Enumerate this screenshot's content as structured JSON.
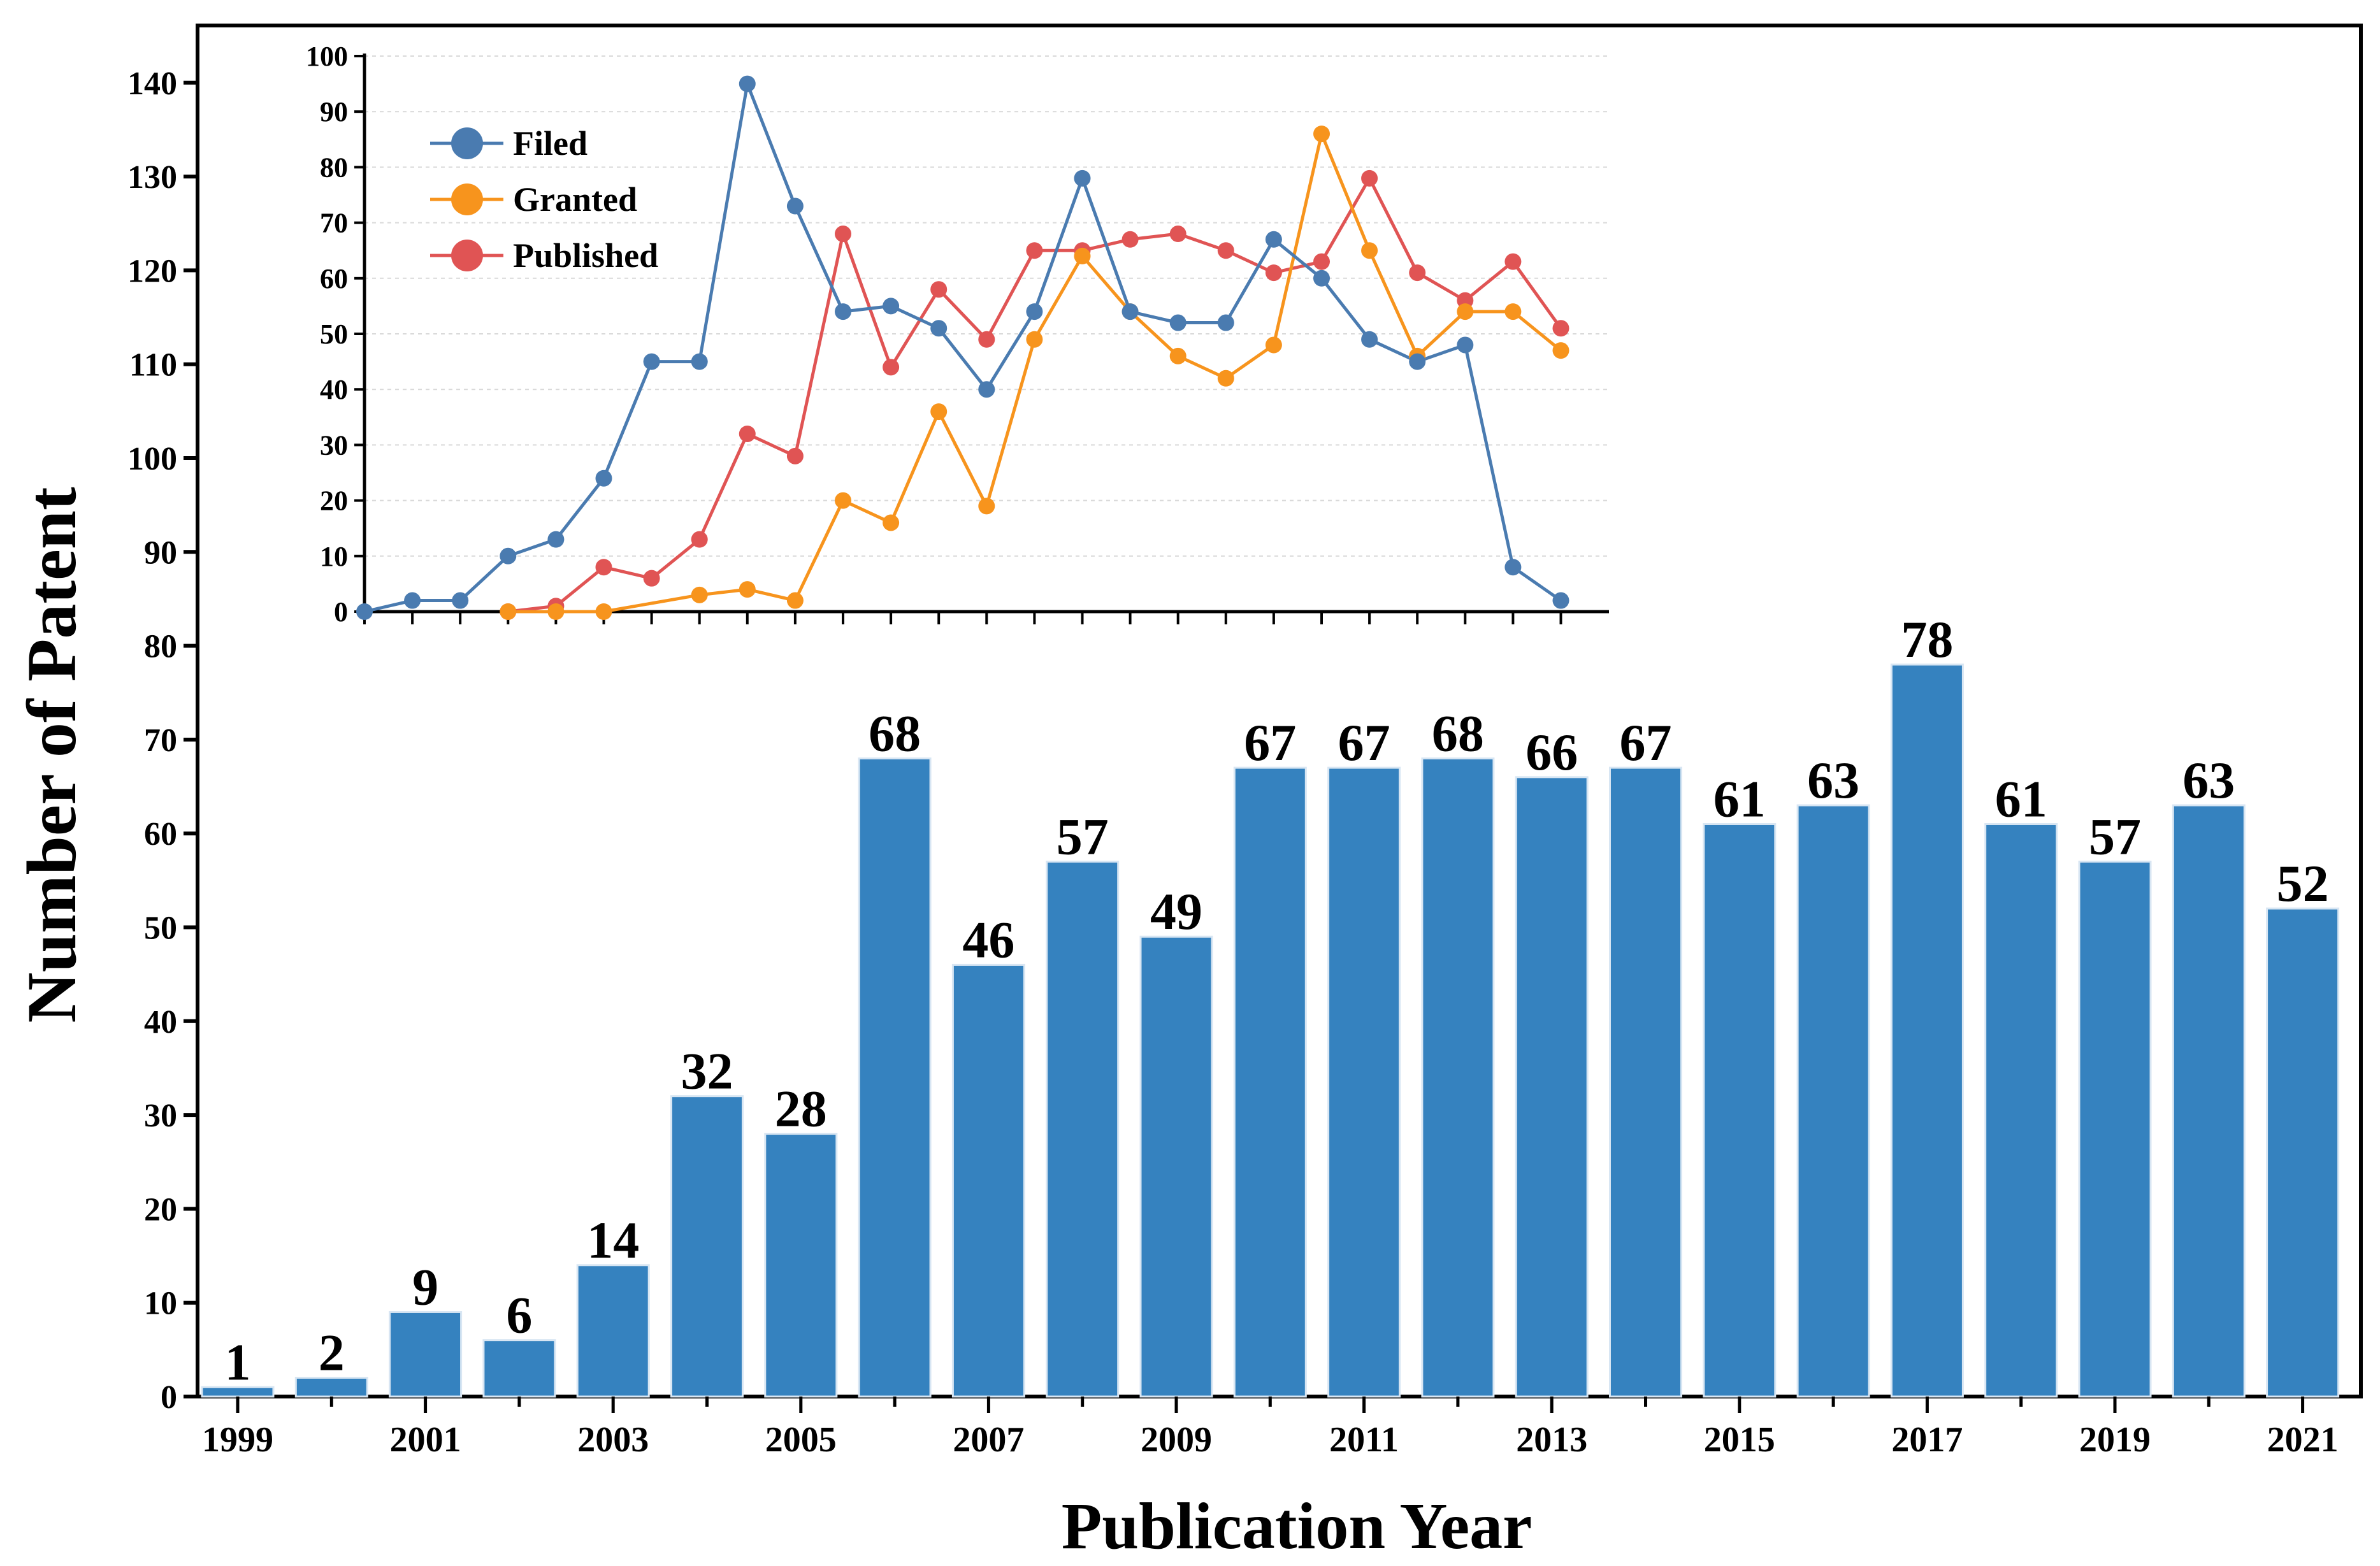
{
  "chart_data": [
    {
      "type": "bar",
      "xlabel": "Publication Year",
      "ylabel": "Number of Patent",
      "categories": [
        "1999",
        "2000",
        "2001",
        "2002",
        "2003",
        "2004",
        "2005",
        "2006",
        "2007",
        "2008",
        "2009",
        "2010",
        "2011",
        "2012",
        "2013",
        "2014",
        "2015",
        "2016",
        "2017",
        "2018",
        "2019",
        "2020",
        "2021"
      ],
      "x_tick_labels": [
        "1999",
        "2001",
        "2003",
        "2005",
        "2007",
        "2009",
        "2011",
        "2013",
        "2015",
        "2017",
        "2019",
        "2021"
      ],
      "values": [
        1,
        2,
        9,
        6,
        14,
        32,
        28,
        68,
        46,
        57,
        49,
        67,
        67,
        68,
        66,
        67,
        61,
        63,
        78,
        61,
        57,
        63,
        52
      ],
      "y_tick_labels": [
        "0",
        "10",
        "20",
        "30",
        "40",
        "50",
        "60",
        "70",
        "80",
        "90",
        "100",
        "110",
        "120",
        "130",
        "140"
      ],
      "color": "#3582bf"
    },
    {
      "type": "line",
      "ylim": [
        0,
        100
      ],
      "y_tick_labels": [
        "0",
        "10",
        "20",
        "30",
        "40",
        "50",
        "60",
        "70",
        "80",
        "90",
        "100"
      ],
      "x": [
        1996,
        1997,
        1998,
        1999,
        2000,
        2001,
        2002,
        2003,
        2004,
        2005,
        2006,
        2007,
        2008,
        2009,
        2010,
        2011,
        2012,
        2013,
        2014,
        2015,
        2016,
        2017,
        2018,
        2019,
        2020,
        2021
      ],
      "series": [
        {
          "name": "Filed",
          "color": "#4a7bb0",
          "values": [
            0,
            2,
            2,
            10,
            13,
            24,
            45,
            45,
            95,
            73,
            54,
            55,
            51,
            40,
            54,
            78,
            54,
            52,
            52,
            67,
            60,
            49,
            45,
            48,
            8,
            2
          ]
        },
        {
          "name": "Granted",
          "color": "#f7941d",
          "values": [
            null,
            null,
            null,
            0,
            0,
            0,
            null,
            3,
            4,
            2,
            20,
            16,
            36,
            19,
            49,
            64,
            54,
            46,
            42,
            48,
            86,
            65,
            46,
            54,
            54,
            47
          ]
        },
        {
          "name": "Published",
          "color": "#e05454",
          "values": [
            null,
            null,
            null,
            0,
            1,
            8,
            6,
            13,
            32,
            28,
            68,
            44,
            58,
            49,
            65,
            65,
            67,
            68,
            65,
            61,
            63,
            78,
            61,
            56,
            63,
            51
          ]
        }
      ]
    }
  ]
}
